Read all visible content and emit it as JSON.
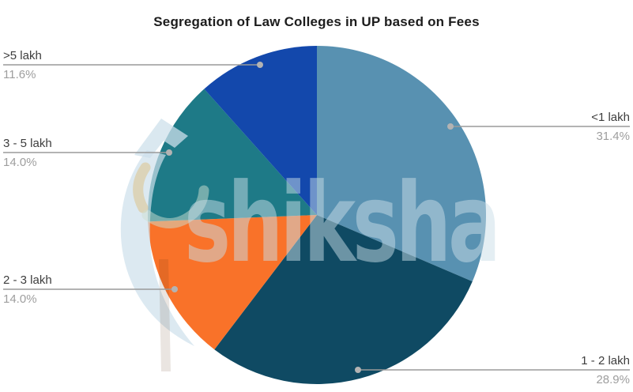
{
  "title": "Segregation of Law Colleges in UP based on Fees",
  "watermark": {
    "text": "shiksha",
    "logo": "shiksha-swoosh-logo"
  },
  "colors": {
    "background": "#ffffff",
    "title_text": "#1c1c1c",
    "label_text": "#3d3d3d",
    "pct_text": "#9e9e9e",
    "leader_line": "#9a9a9a",
    "leader_dot": "#b3b3b3"
  },
  "chart_data": {
    "type": "pie",
    "title": "Segregation of Law Colleges in UP based on Fees",
    "start_angle_deg": 0,
    "direction": "clockwise",
    "legend_position": "none",
    "labels_style": "outside-callouts",
    "slices": [
      {
        "label": "<1 lakh",
        "value_pct": 31.4,
        "pct_label": "31.4%",
        "color": "#5891B1",
        "callout_side": "right"
      },
      {
        "label": "1 - 2 lakh",
        "value_pct": 28.9,
        "pct_label": "28.9%",
        "color": "#0F4A63",
        "callout_side": "right"
      },
      {
        "label": "2 - 3 lakh",
        "value_pct": 14.0,
        "pct_label": "14.0%",
        "color": "#F97229",
        "callout_side": "left"
      },
      {
        "label": "3 - 5 lakh",
        "value_pct": 14.0,
        "pct_label": "14.0%",
        "color": "#1E7A87",
        "callout_side": "left"
      },
      {
        "label": ">5 lakh",
        "value_pct": 11.6,
        "pct_label": "11.6%",
        "color": "#1348AC",
        "callout_side": "left"
      }
    ]
  }
}
